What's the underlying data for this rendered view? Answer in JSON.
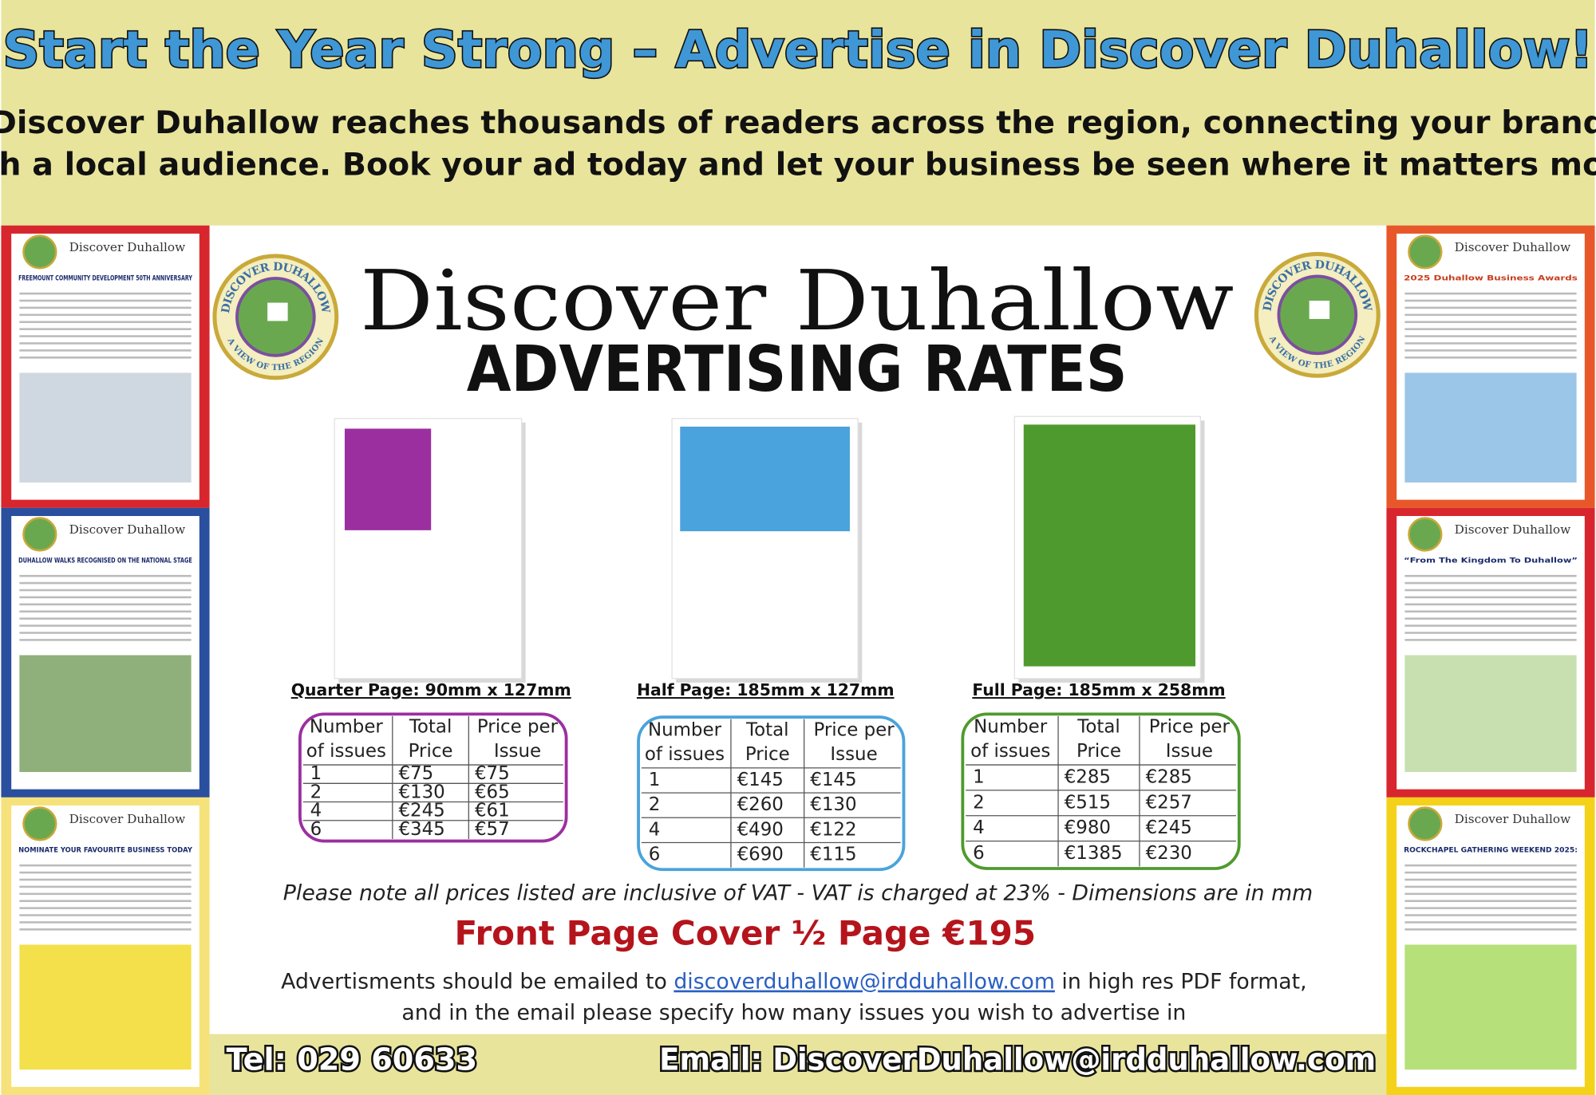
{
  "header": {
    "title": "Start the Year Strong – Advertise in Discover Duhallow!",
    "intro": [
      "Discover Duhallow reaches thousands of readers across the region, connecting your brand",
      "with a local audience. Book your ad today and let your business be seen where it matters most!"
    ]
  },
  "brand": {
    "name": "Discover Duhallow",
    "subtitle": "ADVERTISING RATES",
    "logo_top": "DISCOVER DUHALLOW",
    "logo_bottom": "A VIEW OF THE REGION"
  },
  "ad_sizes": [
    {
      "label": "Quarter Page: 90mm x 127mm",
      "headers": [
        [
          "Number",
          "of issues"
        ],
        [
          "Total",
          "Price"
        ],
        [
          "Price per",
          "Issue"
        ]
      ],
      "rows": [
        [
          "1",
          "€75",
          "€75"
        ],
        [
          "2",
          "€130",
          "€65"
        ],
        [
          "4",
          "€245",
          "€61"
        ],
        [
          "6",
          "€345",
          "€57"
        ]
      ]
    },
    {
      "label": "Half Page: 185mm x 127mm",
      "headers": [
        [
          "Number",
          "of issues"
        ],
        [
          "Total",
          "Price"
        ],
        [
          "Price per",
          "Issue"
        ]
      ],
      "rows": [
        [
          "1",
          "€145",
          "€145"
        ],
        [
          "2",
          "€260",
          "€130"
        ],
        [
          "4",
          "€490",
          "€122"
        ],
        [
          "6",
          "€690",
          "€115"
        ]
      ]
    },
    {
      "label": "Full Page: 185mm x 258mm",
      "headers": [
        [
          "Number",
          "of issues"
        ],
        [
          "Total",
          "Price"
        ],
        [
          "Price per",
          "Issue"
        ]
      ],
      "rows": [
        [
          "1",
          "€285",
          "€285"
        ],
        [
          "2",
          "€515",
          "€257"
        ],
        [
          "4",
          "€980",
          "€245"
        ],
        [
          "6",
          "€1385",
          "€230"
        ]
      ]
    }
  ],
  "note": "Please note all prices listed are inclusive of VAT - VAT is charged at 23% - Dimensions are in mm",
  "front_cover": "Front Page Cover ½ Page €195",
  "email_info": {
    "before": "Advertisments should be emailed to ",
    "link": "discoverduhallow@irdduhallow.com",
    "after": " in high res PDF format,",
    "line2": "and in the email please specify how many issues you wish to advertise in"
  },
  "footer": {
    "tel": "Tel: 029 60633",
    "email": "Email: DiscoverDuhallow@irdduhallow.com"
  },
  "covers": [
    {
      "masthead": "Discover Duhallow",
      "headline": "FREEMOUNT COMMUNITY DEVELOPMENT 50TH ANNIVERSARY"
    },
    {
      "masthead": "Discover Duhallow",
      "headline": "DUHALLOW WALKS RECOGNISED ON THE NATIONAL STAGE"
    },
    {
      "masthead": "Discover Duhallow",
      "headline": "NOMINATE YOUR FAVOURITE BUSINESS TODAY"
    },
    {
      "masthead": "Discover Duhallow",
      "headline": "2025 Duhallow Business Awards"
    },
    {
      "masthead": "Discover Duhallow",
      "headline": "“From The Kingdom To Duhallow”"
    },
    {
      "masthead": "Discover Duhallow",
      "headline": "ROCKCHAPEL GATHERING WEEKEND 2025:"
    }
  ]
}
